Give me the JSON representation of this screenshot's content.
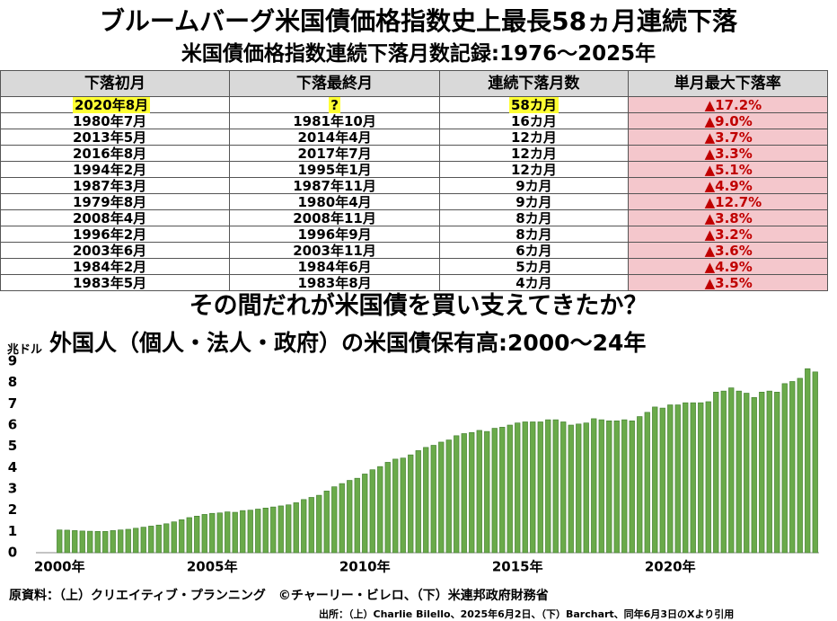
{
  "title": "ブルームバーグ米国債価格指数史上最長58ヵ月連続下落",
  "subtitle": "米国債価格指数連続下落月数記録:1976〜2025年",
  "table": {
    "header": [
      "下落初月",
      "下落最終月",
      "連続下落月数",
      "単月最大下落率"
    ],
    "rows": [
      [
        "2020年8月",
        "?",
        "58カ月",
        "▲17.2%"
      ],
      [
        "1980年7月",
        "1981年10月",
        "16カ月",
        "▲9.0%"
      ],
      [
        "2013年5月",
        "2014年4月",
        "12カ月",
        "▲3.7%"
      ],
      [
        "2016年8月",
        "2017年7月",
        "12カ月",
        "▲3.3%"
      ],
      [
        "1994年2月",
        "1995年1月",
        "12カ月",
        "▲5.1%"
      ],
      [
        "1987年3月",
        "1987年11月",
        "9カ月",
        "▲4.9%"
      ],
      [
        "1979年8月",
        "1980年4月",
        "9カ月",
        "▲12.7%"
      ],
      [
        "2008年4月",
        "2008年11月",
        "8カ月",
        "▲3.8%"
      ],
      [
        "1996年2月",
        "1996年9月",
        "8カ月",
        "▲3.2%"
      ],
      [
        "2003年6月",
        "2003年11月",
        "6カ月",
        "▲3.6%"
      ],
      [
        "1984年2月",
        "1984年6月",
        "5カ月",
        "▲4.9%"
      ],
      [
        "1983年5月",
        "1983年8月",
        "4カ月",
        "▲3.5%"
      ]
    ]
  },
  "headline": "その間だれが米国債を買い支えてきたか？",
  "chart_data": {
    "type": "bar",
    "title": "外国人（個人・法人・政府）の米国債保有高:2000〜24年",
    "y_label": "兆ドル",
    "color": "#6aaa4a",
    "categories": [
      "2000年",
      null,
      null,
      null,
      null,
      null,
      null,
      null,
      null,
      null,
      null,
      null,
      null,
      null,
      null,
      null,
      null,
      null,
      null,
      null,
      "2005年",
      null,
      null,
      null,
      null,
      null,
      null,
      null,
      null,
      null,
      null,
      null,
      null,
      null,
      null,
      null,
      null,
      null,
      null,
      null,
      "2010年",
      null,
      null,
      null,
      null,
      null,
      null,
      null,
      null,
      null,
      null,
      null,
      null,
      null,
      null,
      null,
      null,
      null,
      null,
      null,
      "2015年",
      null,
      null,
      null,
      null,
      null,
      null,
      null,
      null,
      null,
      null,
      null,
      null,
      null,
      null,
      null,
      null,
      null,
      null,
      null,
      "2020年",
      null,
      null,
      null,
      null,
      null,
      null,
      null,
      null,
      null,
      null,
      null,
      null,
      null,
      null,
      null,
      null,
      null,
      null,
      null
    ],
    "values": [
      1.07,
      1.06,
      1.04,
      1.02,
      1.01,
      1.0,
      1.0,
      1.04,
      1.07,
      1.1,
      1.15,
      1.2,
      1.25,
      1.3,
      1.36,
      1.45,
      1.55,
      1.65,
      1.72,
      1.8,
      1.85,
      1.87,
      1.92,
      1.9,
      1.98,
      2.0,
      2.05,
      2.1,
      2.15,
      2.2,
      2.25,
      2.35,
      2.5,
      2.6,
      2.7,
      2.9,
      3.1,
      3.25,
      3.4,
      3.5,
      3.7,
      3.9,
      4.05,
      4.25,
      4.4,
      4.45,
      4.6,
      4.8,
      4.95,
      5.05,
      5.2,
      5.3,
      5.5,
      5.6,
      5.65,
      5.75,
      5.7,
      5.85,
      5.9,
      6.0,
      6.1,
      6.15,
      6.15,
      6.15,
      6.25,
      6.25,
      6.15,
      6.0,
      6.05,
      6.1,
      6.3,
      6.25,
      6.2,
      6.2,
      6.25,
      6.2,
      6.4,
      6.6,
      6.85,
      6.8,
      6.95,
      6.95,
      7.05,
      7.05,
      7.05,
      7.1,
      7.55,
      7.6,
      7.75,
      7.6,
      7.5,
      7.3,
      7.55,
      7.6,
      7.55,
      7.95,
      8.05,
      8.2,
      8.65,
      8.5
    ],
    "ylim": [
      0,
      9
    ],
    "yticks": [
      0,
      1,
      2,
      3,
      4,
      5,
      6,
      7,
      8,
      9
    ],
    "grid": false
  },
  "source": "原資料：（上）クリエイティブ・プランニング　©チャーリー・ビレロ、（下）米連邦政府財務省",
  "credit": "出所：（上）Charlie Bilello、2025年6月2日、（下）Barchart、同年6月3日のXより引用"
}
